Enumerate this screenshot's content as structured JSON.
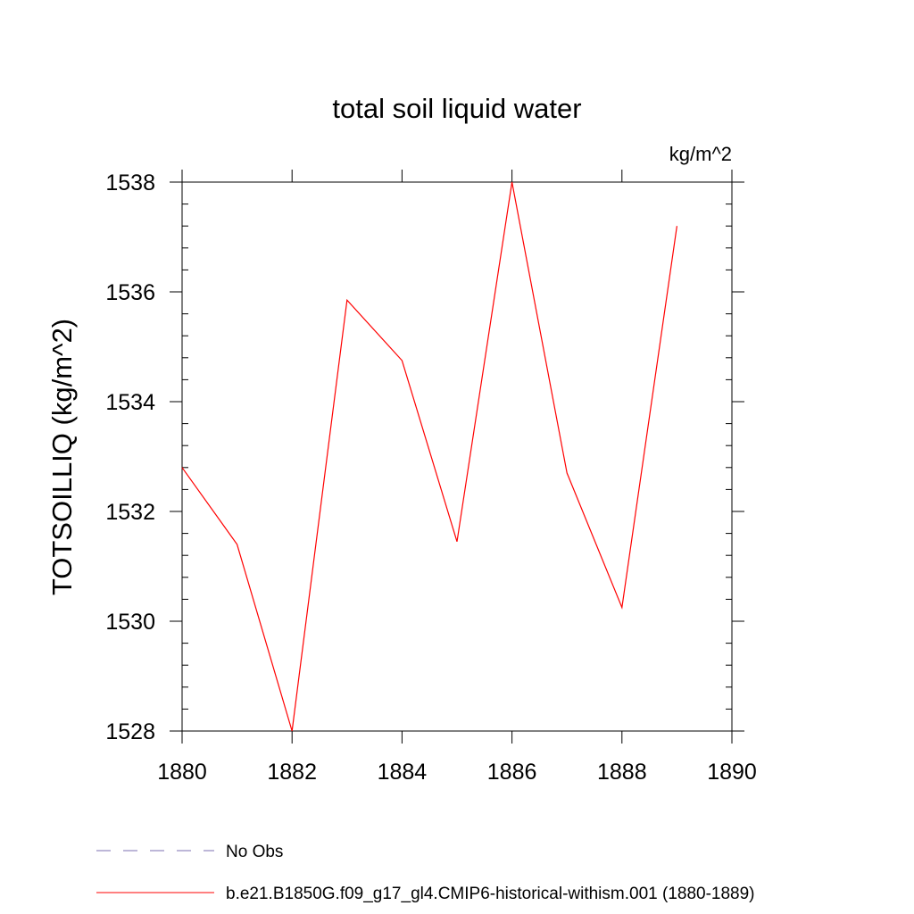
{
  "chart_data": {
    "type": "line",
    "title": "total soil liquid water",
    "units_label": "kg/m^2",
    "xlabel": "",
    "ylabel": "TOTSOILLIQ  (kg/m^2)",
    "xlim": [
      1880,
      1890
    ],
    "ylim": [
      1528,
      1538
    ],
    "x_ticks": [
      1880,
      1882,
      1884,
      1886,
      1888,
      1890
    ],
    "y_ticks": [
      1528,
      1530,
      1532,
      1534,
      1536,
      1538
    ],
    "grid": false,
    "legend_position": "bottom-left",
    "series": [
      {
        "name": "b.e21.B1850G.f09_g17_gl4.CMIP6-historical-withism.001 (1880-1889)",
        "color": "#ff0000",
        "style": "solid",
        "x": [
          1880,
          1881,
          1882,
          1883,
          1884,
          1885,
          1886,
          1887,
          1888,
          1889
        ],
        "y": [
          1532.8,
          1531.4,
          1528.0,
          1535.85,
          1534.75,
          1531.45,
          1538.0,
          1532.7,
          1530.25,
          1537.2
        ]
      }
    ],
    "legend": [
      {
        "label": "No Obs",
        "color": "#7b6fb0",
        "style": "dashed"
      },
      {
        "label": "b.e21.B1850G.f09_g17_gl4.CMIP6-historical-withism.001 (1880-1889)",
        "color": "#ff0000",
        "style": "solid"
      }
    ]
  }
}
